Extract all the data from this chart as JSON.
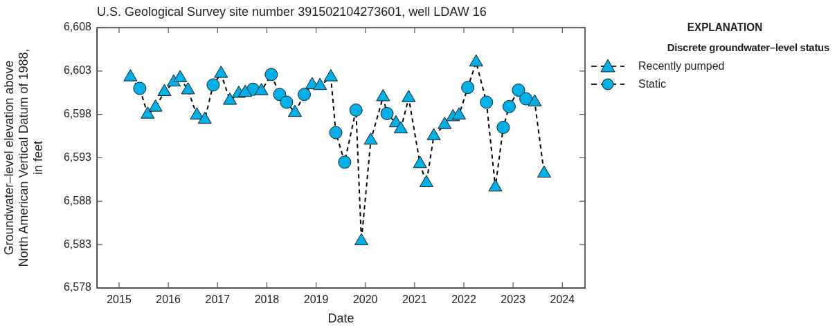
{
  "chart_data": {
    "type": "scatter",
    "title": "U.S. Geological Survey site number 391502104273601, well LDAW 16",
    "xlabel": "Date",
    "ylabel": "Groundwater–level elevation above\nNorth American Vertical Datum of 1988,\nin feet",
    "legend_title": "EXPLANATION",
    "annotations": [
      "Discrete groundwater–level status"
    ],
    "legend": "right",
    "grid": false,
    "xlim": [
      2014.55,
      2024.46
    ],
    "xticks": [
      2015,
      2016,
      2017,
      2018,
      2019,
      2020,
      2021,
      2022,
      2023,
      2024
    ],
    "ylim": [
      6578,
      6608
    ],
    "yticks": [
      {
        "value": 6578,
        "label": "6,578"
      },
      {
        "value": 6583,
        "label": "6,583"
      },
      {
        "value": 6588,
        "label": "6,588"
      },
      {
        "value": 6593,
        "label": "6,593"
      },
      {
        "value": 6598,
        "label": "6,598"
      },
      {
        "value": 6603,
        "label": "6,603"
      },
      {
        "value": 6608,
        "label": "6,608"
      }
    ],
    "series": [
      {
        "type": "line",
        "color": "#000000",
        "marker": "none",
        "line_style": "dashed",
        "x": [
          2015.23,
          2015.42,
          2015.58,
          2015.74,
          2015.92,
          2016.11,
          2016.24,
          2016.4,
          2016.58,
          2016.74,
          2016.91,
          2017.07,
          2017.25,
          2017.43,
          2017.56,
          2017.72,
          2017.89,
          2018.09,
          2018.26,
          2018.4,
          2018.57,
          2018.76,
          2018.92,
          2019.08,
          2019.3,
          2019.4,
          2019.58,
          2019.81,
          2019.92,
          2020.11,
          2020.36,
          2020.44,
          2020.62,
          2020.72,
          2020.88,
          2021.11,
          2021.24,
          2021.39,
          2021.61,
          2021.78,
          2021.9,
          2022.08,
          2022.25,
          2022.46,
          2022.64,
          2022.8,
          2022.92,
          2023.11,
          2023.26,
          2023.44,
          2023.63
        ],
        "values": [
          6602.3,
          6601.0,
          6598.0,
          6598.8,
          6600.6,
          6601.7,
          6602.2,
          6600.8,
          6597.9,
          6597.4,
          6601.4,
          6602.7,
          6599.6,
          6600.4,
          6600.5,
          6600.9,
          6600.7,
          6602.6,
          6600.3,
          6599.4,
          6598.2,
          6600.3,
          6601.4,
          6601.3,
          6602.3,
          6595.9,
          6592.5,
          6598.5,
          6583.4,
          6595.0,
          6600.0,
          6598.1,
          6597.0,
          6596.3,
          6599.9,
          6592.3,
          6590.1,
          6595.5,
          6596.8,
          6597.7,
          6597.9,
          6601.1,
          6604.0,
          6599.4,
          6589.6,
          6596.5,
          6598.9,
          6600.8,
          6599.8,
          6599.4,
          6591.2
        ]
      },
      {
        "name": "Recently pumped",
        "type": "scatter",
        "color": "#00b0e8",
        "marker": "triangle",
        "line_style": "dashed",
        "x": [
          2015.23,
          2015.58,
          2015.74,
          2015.92,
          2016.11,
          2016.24,
          2016.4,
          2016.58,
          2016.74,
          2017.07,
          2017.25,
          2017.43,
          2017.56,
          2017.89,
          2018.57,
          2018.92,
          2019.08,
          2019.3,
          2019.92,
          2020.11,
          2020.36,
          2020.62,
          2020.72,
          2020.88,
          2021.11,
          2021.24,
          2021.39,
          2021.61,
          2021.78,
          2021.9,
          2022.25,
          2022.64,
          2023.44,
          2023.63
        ],
        "values": [
          6602.3,
          6598.0,
          6598.8,
          6600.6,
          6601.7,
          6602.2,
          6600.8,
          6597.9,
          6597.4,
          6602.7,
          6599.6,
          6600.4,
          6600.5,
          6600.7,
          6598.2,
          6601.4,
          6601.3,
          6602.3,
          6583.4,
          6595.0,
          6600.0,
          6597.0,
          6596.3,
          6599.9,
          6592.3,
          6590.1,
          6595.5,
          6596.8,
          6597.7,
          6597.9,
          6604.0,
          6589.6,
          6599.4,
          6591.2
        ]
      },
      {
        "name": "Static",
        "type": "scatter",
        "color": "#00b0e8",
        "marker": "circle",
        "line_style": "dashed",
        "x": [
          2015.42,
          2016.91,
          2017.72,
          2018.09,
          2018.26,
          2018.4,
          2018.76,
          2019.4,
          2019.58,
          2019.81,
          2020.44,
          2022.08,
          2022.46,
          2022.8,
          2022.92,
          2023.11,
          2023.26
        ],
        "values": [
          6601.0,
          6601.4,
          6600.9,
          6602.6,
          6600.3,
          6599.4,
          6600.3,
          6595.9,
          6592.5,
          6598.5,
          6598.1,
          6601.1,
          6599.4,
          6596.5,
          6598.9,
          6600.8,
          6599.8
        ]
      }
    ]
  }
}
